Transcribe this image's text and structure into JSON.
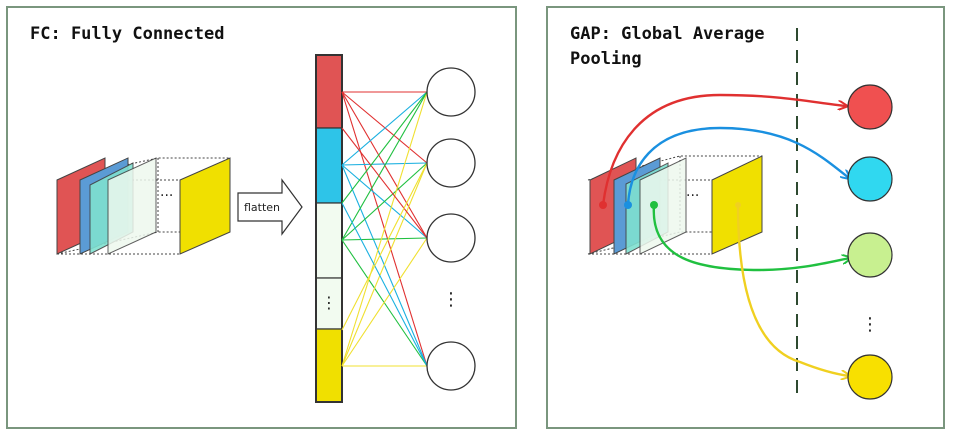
{
  "fc": {
    "title": "FC: Fully Connected",
    "flatten_label": "flatten",
    "feature_map_colors": [
      "#e05454",
      "#5b9bd5",
      "#7fe0d0",
      "#e8f5e8",
      "#f0e000"
    ],
    "vector_segment_colors": [
      "#e05454",
      "#2ec4e8",
      "#f2fbf0",
      "#f2fbf0",
      "#f0e000"
    ],
    "connection_colors": [
      "#e03030",
      "#1ab0e0",
      "#20c040",
      "#20c040",
      "#f0e030"
    ],
    "ellipsis": "⋮",
    "ellipsis_horizontal": "···"
  },
  "gap": {
    "title": "GAP: Global Average\nPooling",
    "feature_map_colors": [
      "#e05454",
      "#5b9bd5",
      "#7fe0d0",
      "#e8f5e8",
      "#f0e000"
    ],
    "output_colors": [
      "#f05050",
      "#30d8f0",
      "#c8f090",
      "#f8e000"
    ],
    "arrow_colors": [
      "#e03030",
      "#1a90e0",
      "#20c040",
      "#f0e040"
    ],
    "ellipsis": "⋮",
    "ellipsis_horizontal": "···"
  }
}
